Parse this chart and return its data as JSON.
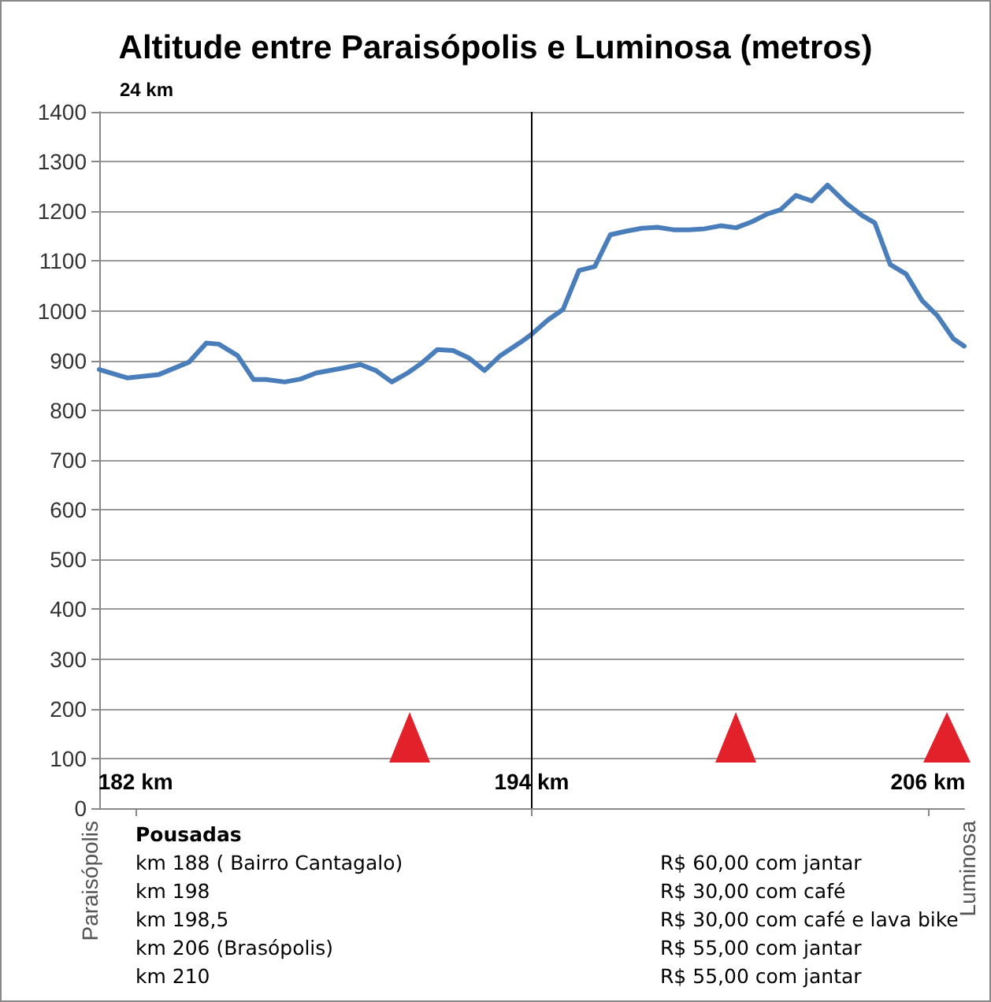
{
  "chart_data": {
    "type": "line",
    "title": "Altitude entre Paraisópolis e Luminosa (metros)",
    "subtitle": "24 km",
    "x": [
      180.9,
      181.76,
      182.71,
      183.62,
      184.14,
      184.52,
      185.09,
      185.57,
      185.95,
      186.52,
      187.0,
      187.47,
      188.28,
      188.81,
      189.28,
      189.76,
      190.24,
      190.67,
      191.14,
      191.62,
      192.1,
      192.57,
      193.05,
      193.67,
      194.0,
      194.48,
      194.95,
      195.43,
      195.91,
      196.38,
      196.86,
      197.34,
      197.81,
      198.29,
      198.76,
      199.24,
      199.72,
      200.19,
      200.67,
      201.15,
      201.53,
      202.0,
      202.48,
      202.96,
      203.53,
      204.0,
      204.39,
      204.86,
      205.34,
      205.82,
      206.29,
      206.77,
      207.1
    ],
    "series": [
      {
        "color": "#4a7ebb",
        "values": [
          882,
          865,
          872,
          897,
          935,
          933,
          910,
          862,
          862,
          857,
          863,
          875,
          885,
          892,
          880,
          857,
          875,
          895,
          922,
          920,
          905,
          880,
          910,
          937,
          953,
          981,
          1003,
          1081,
          1089,
          1153,
          1160,
          1166,
          1168,
          1163,
          1163,
          1165,
          1171,
          1167,
          1179,
          1195,
          1203,
          1232,
          1221,
          1253,
          1216,
          1192,
          1177,
          1093,
          1074,
          1021,
          990,
          944,
          929
        ]
      }
    ],
    "xlim": [
      180.9,
      207.1
    ],
    "xticks": [
      {
        "value": 182,
        "label": "182 km"
      },
      {
        "value": 194,
        "label": "194 km"
      },
      {
        "value": 206,
        "label": "206 km"
      }
    ],
    "ylim": [
      0,
      1400
    ],
    "yticks": [
      0,
      100,
      200,
      300,
      400,
      500,
      600,
      700,
      800,
      900,
      1000,
      1100,
      1200,
      1300,
      1400
    ],
    "grid": "y",
    "marker": "none",
    "line_style": "solid",
    "ref_lines": [
      {
        "axis": "x",
        "value": 194,
        "color": "#000000"
      }
    ],
    "annotations": [
      "Paraisópolis",
      "Luminosa",
      "Pousadas",
      "km 188 ( Bairro Cantagalo)",
      "R$ 60,00 com jantar",
      "km 198",
      "R$ 30,00 com café",
      "km 198,5",
      "R$ 30,00 com café e lava bike",
      "km 206 (Brasópolis)",
      "R$ 55,00 com jantar",
      "km 210",
      "R$ 55,00 com jantar"
    ]
  }
}
